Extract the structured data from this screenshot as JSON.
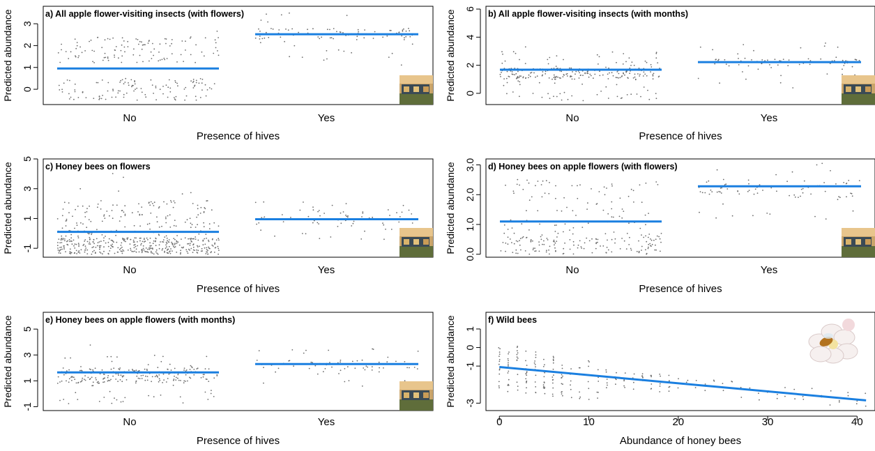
{
  "colors": {
    "fit_line": "#1a7fe0",
    "points": "#6b6b6b",
    "frame": "#000000"
  },
  "chart_data": [
    {
      "type": "scatter",
      "title": "a) All apple flower-visiting insects (with flowers)",
      "xlabel": "Presence of hives",
      "ylabel": "Predicted abundance",
      "categories": [
        "No",
        "Yes"
      ],
      "ylim": [
        -0.7,
        3.8
      ],
      "yticks": [
        0,
        1,
        2,
        3
      ],
      "fit": [
        0.95,
        2.52
      ],
      "points": [
        {
          "category": "No",
          "n": 230,
          "min": -0.7,
          "max": 2.8,
          "low_band": [
            -0.5,
            0.5
          ],
          "low_share": 0.55,
          "high_band": [
            1.2,
            2.4
          ]
        },
        {
          "category": "Yes",
          "n": 90,
          "min": 0.9,
          "max": 3.7,
          "low_band": [
            2.3,
            2.8
          ],
          "low_share": 0.7,
          "high_band": [
            1.0,
            3.6
          ]
        }
      ],
      "has_photo": true
    },
    {
      "type": "scatter",
      "title": "b) All apple flower-visiting insects (with months)",
      "xlabel": "Presence of hives",
      "ylabel": "Predicted abundance",
      "categories": [
        "No",
        "Yes"
      ],
      "ylim": [
        -0.8,
        6.2
      ],
      "yticks": [
        0,
        2,
        4,
        6
      ],
      "fit": [
        1.68,
        2.22
      ],
      "points": [
        {
          "category": "No",
          "n": 260,
          "min": -0.8,
          "max": 5.0,
          "low_band": [
            1.0,
            1.8
          ],
          "low_share": 0.65,
          "high_band": [
            -0.5,
            3.0
          ]
        },
        {
          "category": "Yes",
          "n": 80,
          "min": 0.0,
          "max": 3.7,
          "low_band": [
            1.9,
            2.5
          ],
          "low_share": 0.7,
          "high_band": [
            0.2,
            3.6
          ]
        }
      ],
      "has_photo": true
    },
    {
      "type": "scatter",
      "title": "c) Honey bees on flowers",
      "xlabel": "Presence of hives",
      "ylabel": "Predicted abundance",
      "categories": [
        "No",
        "Yes"
      ],
      "ylim": [
        -1.6,
        5.0
      ],
      "yticks": [
        -1,
        1,
        3,
        5
      ],
      "fit": [
        0.1,
        0.95
      ],
      "points": [
        {
          "category": "No",
          "n": 520,
          "min": -1.5,
          "max": 4.8,
          "low_band": [
            -1.4,
            -0.3
          ],
          "low_share": 0.72,
          "high_band": [
            -0.3,
            2.2
          ]
        },
        {
          "category": "Yes",
          "n": 70,
          "min": -0.5,
          "max": 2.3,
          "low_band": [
            0.6,
            1.6
          ],
          "low_share": 0.6,
          "high_band": [
            -0.5,
            2.2
          ]
        }
      ],
      "has_photo": true
    },
    {
      "type": "scatter",
      "title": "d) Honey bees on apple flowers (with flowers)",
      "xlabel": "Presence of hives",
      "ylabel": "Predicted abundance",
      "categories": [
        "No",
        "Yes"
      ],
      "ylim": [
        -0.1,
        3.2
      ],
      "yticks": [
        0.0,
        1.0,
        2.0,
        3.0
      ],
      "ytick_labels": [
        "0.0",
        "1.0",
        "2.0",
        "3.0"
      ],
      "fit": [
        1.1,
        2.28
      ],
      "points": [
        {
          "category": "No",
          "n": 240,
          "min": 0.0,
          "max": 2.7,
          "low_band": [
            0.0,
            0.6
          ],
          "low_share": 0.55,
          "high_band": [
            0.6,
            2.5
          ]
        },
        {
          "category": "Yes",
          "n": 80,
          "min": 1.0,
          "max": 3.2,
          "low_band": [
            1.9,
            2.5
          ],
          "low_share": 0.7,
          "high_band": [
            1.0,
            3.1
          ]
        }
      ],
      "has_photo": true
    },
    {
      "type": "scatter",
      "title": "e) Honey bees on apple flowers (with months)",
      "xlabel": "Presence of hives",
      "ylabel": "Predicted abundance",
      "categories": [
        "No",
        "Yes"
      ],
      "ylim": [
        -1.3,
        6.3
      ],
      "yticks": [
        -1,
        1,
        3,
        5
      ],
      "fit": [
        1.65,
        2.3
      ],
      "points": [
        {
          "category": "No",
          "n": 230,
          "min": -1.2,
          "max": 5.0,
          "low_band": [
            0.8,
            2.0
          ],
          "low_share": 0.7,
          "high_band": [
            -0.8,
            3.0
          ]
        },
        {
          "category": "Yes",
          "n": 70,
          "min": 0.2,
          "max": 3.8,
          "low_band": [
            1.8,
            2.6
          ],
          "low_share": 0.6,
          "high_band": [
            0.3,
            3.5
          ]
        }
      ],
      "has_photo": true
    },
    {
      "type": "scatter",
      "title": "f) Wild bees",
      "xlabel": "Abundance of honey bees",
      "ylabel": "Predicted abundance",
      "xlim": [
        -1.5,
        42
      ],
      "xticks": [
        0,
        10,
        20,
        30,
        40
      ],
      "ylim": [
        -3.4,
        1.9
      ],
      "yticks": [
        -3,
        -1,
        0,
        1
      ],
      "fit_line": {
        "x": [
          0,
          41
        ],
        "y": [
          -1.05,
          -2.85
        ]
      },
      "points_x_max": 41,
      "has_photo": true
    }
  ]
}
